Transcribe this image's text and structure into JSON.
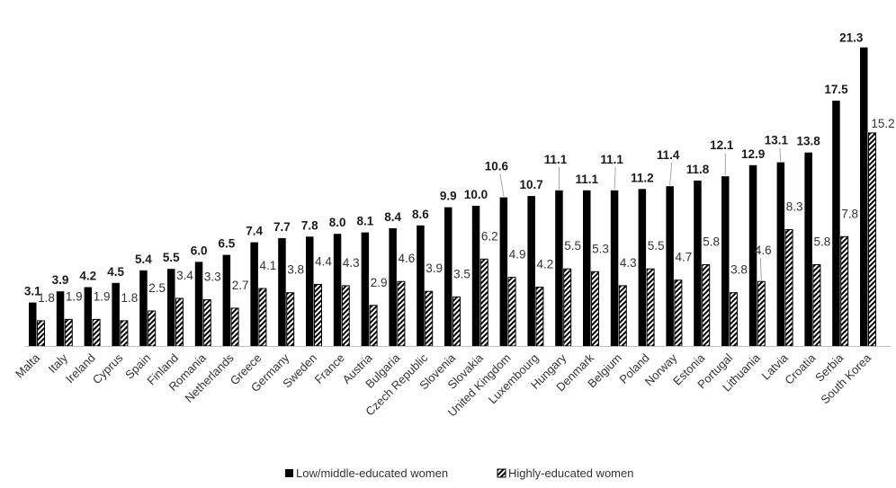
{
  "chart_data": {
    "type": "bar",
    "categories": [
      "Malta",
      "Italy",
      "Ireland",
      "Cyprus",
      "Spain",
      "Finland",
      "Romania",
      "Netherlands",
      "Greece",
      "Germany",
      "Sweden",
      "France",
      "Austria",
      "Bulgaria",
      "Czech Republic",
      "Slovenia",
      "Slovakia",
      "United Kingdom",
      "Luxembourg",
      "Hungary",
      "Denmark",
      "Belgium",
      "Poland",
      "Norway",
      "Estonia",
      "Portugal",
      "Lithuania",
      "Latvia",
      "Croatia",
      "Serbia",
      "South Korea"
    ],
    "series": [
      {
        "name": "Low/middle-educated women",
        "values": [
          3.1,
          3.9,
          4.2,
          4.5,
          5.4,
          5.5,
          6.0,
          6.5,
          7.4,
          7.7,
          7.8,
          8.0,
          8.1,
          8.4,
          8.6,
          9.9,
          10.0,
          10.6,
          10.7,
          11.1,
          11.1,
          11.1,
          11.2,
          11.4,
          11.8,
          12.1,
          12.9,
          13.1,
          13.8,
          17.5,
          21.3
        ],
        "labels": [
          "3.1",
          "3.9",
          "4.2",
          "4.5",
          "5.4",
          "5.5",
          "6.0",
          "6.5",
          "7.4",
          "7.7",
          "7.8",
          "8.0",
          "8.1",
          "8.4",
          "8.6",
          "9.9",
          "10.0",
          "10.6",
          "10.7",
          "11.1",
          "11.1",
          "11.1",
          "11.2",
          "11.4",
          "11.8",
          "12.1",
          "12.9",
          "13.1",
          "13.8",
          "17.5",
          "21.3"
        ],
        "color": "#000000",
        "fill": "solid"
      },
      {
        "name": "Highly-educated women",
        "values": [
          1.8,
          1.9,
          1.9,
          1.8,
          2.5,
          3.4,
          3.3,
          2.7,
          4.1,
          3.8,
          4.4,
          4.3,
          2.9,
          4.6,
          3.9,
          3.5,
          6.2,
          4.9,
          4.2,
          5.5,
          5.3,
          4.3,
          5.5,
          4.7,
          5.8,
          3.8,
          4.6,
          8.3,
          5.8,
          7.8,
          15.2
        ],
        "labels": [
          "1.8",
          "1.9",
          "1.9",
          "1.8",
          "2.5",
          "3.4",
          "3.3",
          "2.7",
          "4.1",
          "3.8",
          "4.4",
          "4.3",
          "2.9",
          "4.6",
          "3.9",
          "3.5",
          "6.2",
          "4.9",
          "4.2",
          "5.5",
          "5.3",
          "4.3",
          "5.5",
          "4.7",
          "5.8",
          "3.8",
          "4.6",
          "8.3",
          "5.8",
          "7.8",
          "15.2"
        ],
        "color": "#000000",
        "fill": "diagonal-hatch"
      }
    ],
    "title": "",
    "xlabel": "",
    "ylabel": "",
    "ylim": [
      0,
      22
    ],
    "grid": false,
    "legend": "bottom-center"
  },
  "legend": {
    "low": "Low/middle-educated women",
    "high": "Highly-educated women"
  }
}
